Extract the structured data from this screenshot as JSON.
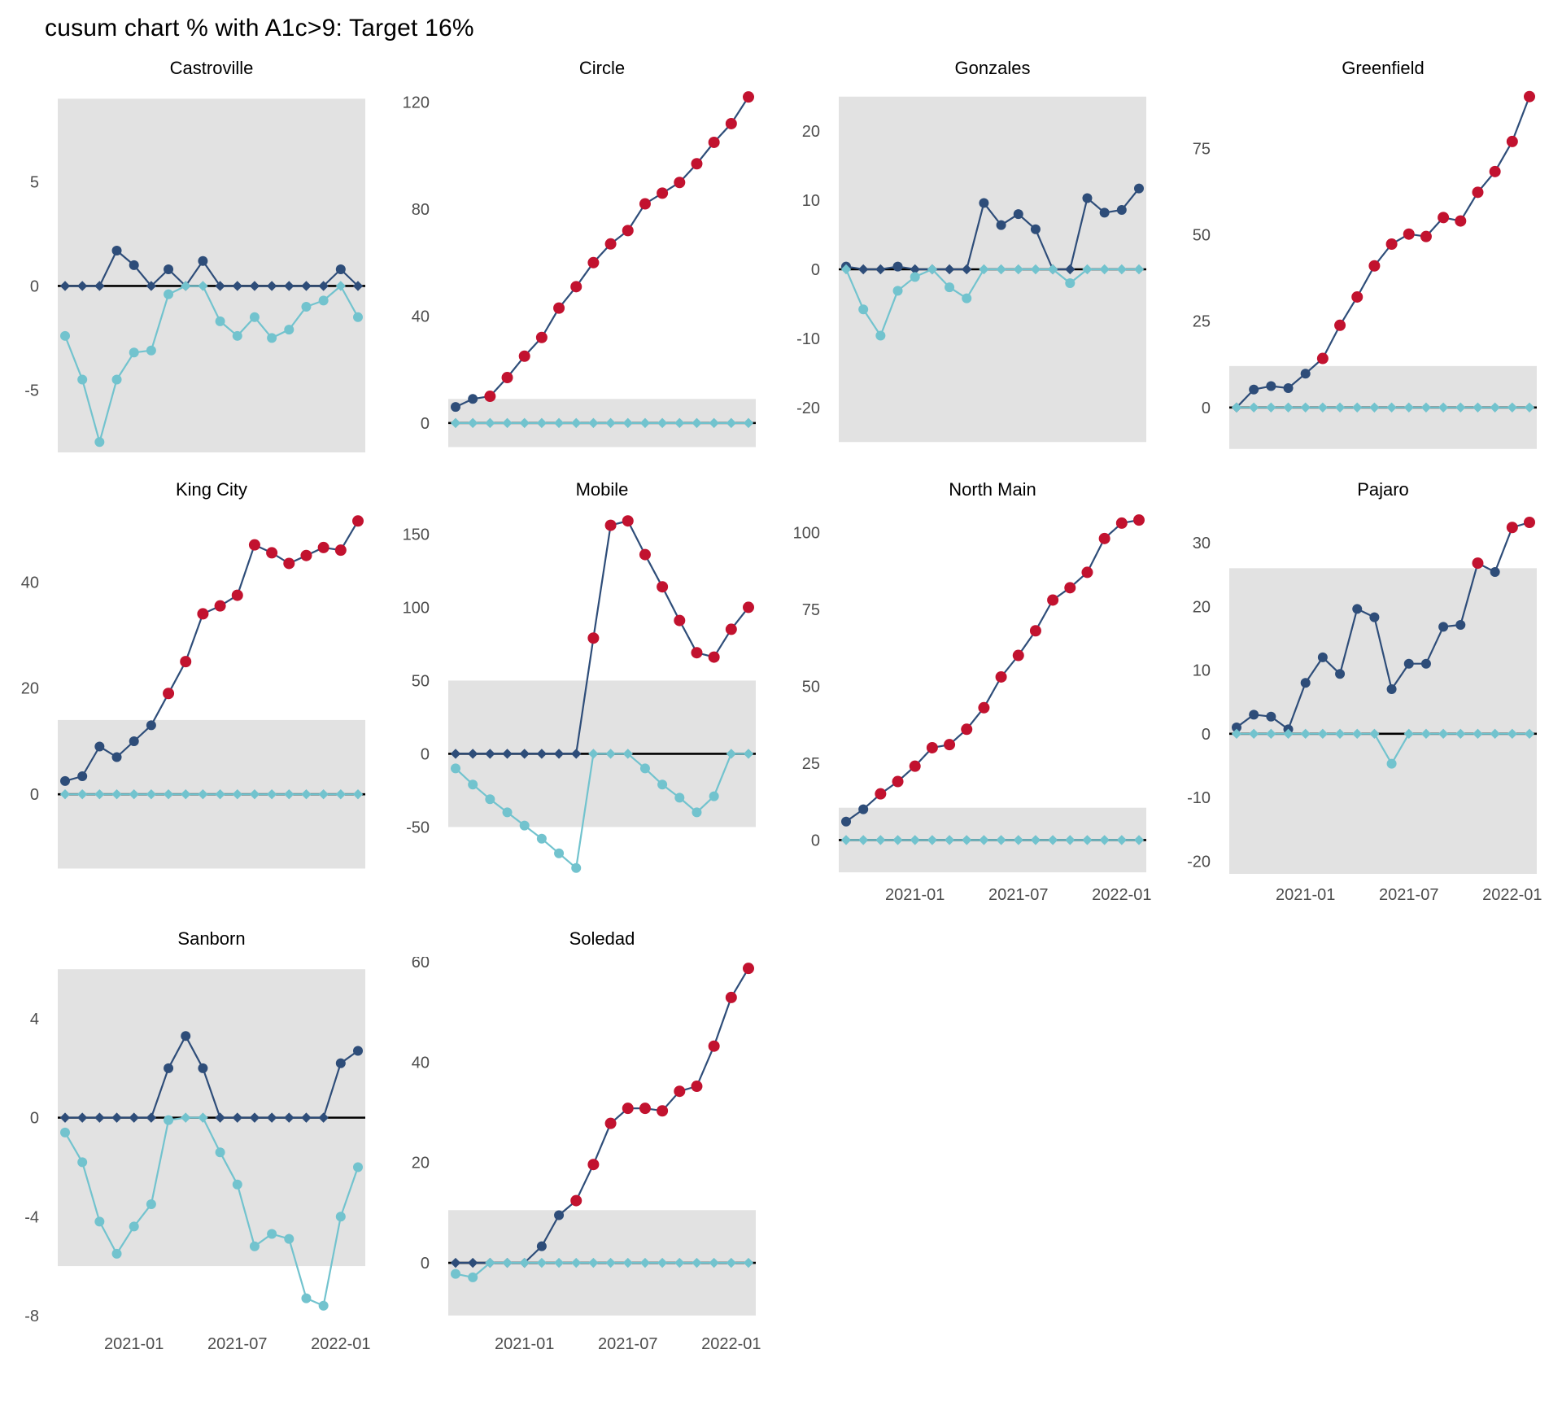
{
  "title": "cusum chart % with A1c>9: Target 16%",
  "colors": {
    "navy": "#2e4d79",
    "red": "#c2122f",
    "cyan": "#72c3ce",
    "band": "#e2e2e2",
    "axis_text": "#4d4d4d",
    "zero_line": "#000000",
    "background": "#ffffff"
  },
  "x_axis": {
    "tick_labels": [
      "2021-01",
      "2021-07",
      "2022-01"
    ],
    "tick_month_indices": [
      4,
      10,
      16
    ],
    "n_points": 18
  },
  "chart_data": {
    "type": "line",
    "title": "cusum chart % with A1c>9: Target 16%",
    "legend": "none",
    "grid": false,
    "series_names": [
      "cusum-upper",
      "cusum-lower"
    ],
    "panels": [
      {
        "title": "Castroville",
        "ylim": [
          -8.0,
          9.6
        ],
        "yticks": [
          -5,
          0,
          5
        ],
        "band_limit": 9,
        "upper": [
          0,
          0,
          0,
          1.7,
          1.0,
          0,
          0.8,
          0,
          1.2,
          0,
          0,
          0,
          0,
          0,
          0,
          0,
          0.8,
          0
        ],
        "upper_flags": [
          0,
          0,
          0,
          0,
          0,
          0,
          0,
          0,
          0,
          0,
          0,
          0,
          0,
          0,
          0,
          0,
          0,
          0
        ],
        "lower": [
          -2.4,
          -4.5,
          -7.5,
          -4.5,
          -3.2,
          -3.1,
          -0.4,
          0,
          0,
          -1.7,
          -2.4,
          -1.5,
          -2.5,
          -2.1,
          -1.0,
          -0.7,
          0,
          -1.5
        ],
        "show_x_axis": false
      },
      {
        "title": "Circle",
        "ylim": [
          -11,
          126
        ],
        "yticks": [
          0,
          40,
          80,
          120
        ],
        "band_limit": 9,
        "upper": [
          6,
          9,
          10,
          17,
          25,
          32,
          43,
          51,
          60,
          67,
          72,
          82,
          86,
          90,
          97,
          105,
          112,
          122
        ],
        "upper_flags": [
          0,
          0,
          1,
          1,
          1,
          1,
          1,
          1,
          1,
          1,
          1,
          1,
          1,
          1,
          1,
          1,
          1,
          1
        ],
        "lower": [
          0,
          0,
          0,
          0,
          0,
          0,
          0,
          0,
          0,
          0,
          0,
          0,
          0,
          0,
          0,
          0,
          0,
          0
        ],
        "show_x_axis": false
      },
      {
        "title": "Gonzales",
        "ylim": [
          -26.5,
          26.5
        ],
        "yticks": [
          -20,
          -10,
          0,
          10,
          20
        ],
        "band_limit": 25,
        "upper": [
          0.4,
          0,
          0,
          0.4,
          0,
          0,
          0,
          0,
          9.6,
          6.4,
          8,
          5.8,
          0,
          0,
          10.3,
          8.2,
          8.6,
          11.7
        ],
        "upper_flags": [
          0,
          0,
          0,
          0,
          0,
          0,
          0,
          0,
          0,
          0,
          0,
          0,
          0,
          0,
          0,
          0,
          0,
          0
        ],
        "lower": [
          0,
          -5.8,
          -9.6,
          -3.1,
          -1.1,
          0,
          -2.6,
          -4.2,
          0,
          0,
          0,
          0,
          0,
          -2,
          0,
          0,
          0,
          0
        ],
        "show_x_axis": false
      },
      {
        "title": "Greenfield",
        "ylim": [
          -13,
          93
        ],
        "yticks": [
          0,
          25,
          50,
          75
        ],
        "band_limit": 12,
        "upper": [
          0,
          5.2,
          6.2,
          5.6,
          9.8,
          14.2,
          23.8,
          32,
          41,
          47.3,
          50.2,
          49.5,
          55,
          54,
          62.3,
          68.3,
          77,
          90
        ],
        "upper_flags": [
          0,
          0,
          0,
          0,
          0,
          1,
          1,
          1,
          1,
          1,
          1,
          1,
          1,
          1,
          1,
          1,
          1,
          1
        ],
        "lower": [
          0,
          0,
          0,
          0,
          0,
          0,
          0,
          0,
          0,
          0,
          0,
          0,
          0,
          0,
          0,
          0,
          0,
          0
        ],
        "show_x_axis": false
      },
      {
        "title": "King City",
        "ylim": [
          -15,
          54
        ],
        "yticks": [
          0,
          20,
          40
        ],
        "band_limit": 14,
        "upper": [
          2.5,
          3.4,
          9,
          7,
          10,
          13,
          19,
          25,
          34,
          35.5,
          37.5,
          47,
          45.5,
          43.5,
          45,
          46.5,
          46,
          51.5
        ],
        "upper_flags": [
          0,
          0,
          0,
          0,
          0,
          0,
          1,
          1,
          1,
          1,
          1,
          1,
          1,
          1,
          1,
          1,
          1,
          1
        ],
        "lower": [
          0,
          0,
          0,
          0,
          0,
          0,
          0,
          0,
          0,
          0,
          0,
          0,
          0,
          0,
          0,
          0,
          0,
          0
        ],
        "show_x_axis": false
      },
      {
        "title": "Mobile",
        "ylim": [
          -82,
          168
        ],
        "yticks": [
          -50,
          0,
          50,
          100,
          150
        ],
        "band_limit": 50,
        "upper": [
          0,
          0,
          0,
          0,
          0,
          0,
          0,
          0,
          79,
          156,
          159,
          136,
          114,
          91,
          69,
          66,
          85,
          100
        ],
        "upper_flags": [
          0,
          0,
          0,
          0,
          0,
          0,
          0,
          0,
          1,
          1,
          1,
          1,
          1,
          1,
          1,
          1,
          1,
          1
        ],
        "lower": [
          -10,
          -21,
          -31,
          -40,
          -49,
          -58,
          -68,
          -78,
          0,
          0,
          0,
          -10,
          -21,
          -30,
          -40,
          -29,
          0,
          0
        ],
        "show_x_axis": false
      },
      {
        "title": "North Main",
        "ylim": [
          -11,
          108
        ],
        "yticks": [
          0,
          25,
          50,
          75,
          100
        ],
        "band_limit": 10.5,
        "upper": [
          6,
          10,
          15,
          19,
          24,
          30,
          31,
          36,
          43,
          53,
          60,
          68,
          78,
          82,
          87,
          98,
          103,
          104
        ],
        "upper_flags": [
          0,
          0,
          1,
          1,
          1,
          1,
          1,
          1,
          1,
          1,
          1,
          1,
          1,
          1,
          1,
          1,
          1,
          1
        ],
        "lower": [
          0,
          0,
          0,
          0,
          0,
          0,
          0,
          0,
          0,
          0,
          0,
          0,
          0,
          0,
          0,
          0,
          0,
          0
        ],
        "show_x_axis": true
      },
      {
        "title": "Pajaro",
        "ylim": [
          -22,
          35.5
        ],
        "yticks": [
          -20,
          -10,
          0,
          10,
          20,
          30
        ],
        "band_limit": 26,
        "upper": [
          1,
          3,
          2.7,
          0.7,
          8,
          12,
          9.4,
          19.6,
          18.3,
          7,
          11,
          11,
          16.8,
          17.1,
          26.8,
          25.4,
          32.4,
          33.2
        ],
        "upper_flags": [
          0,
          0,
          0,
          0,
          0,
          0,
          0,
          0,
          0,
          0,
          0,
          0,
          0,
          0,
          1,
          0,
          1,
          1
        ],
        "lower": [
          0,
          0,
          0,
          0,
          0,
          0,
          0,
          0,
          0,
          -4.7,
          0,
          0,
          0,
          0,
          0,
          0,
          0,
          0
        ],
        "show_x_axis": true
      },
      {
        "title": "Sanborn",
        "ylim": [
          -8.3,
          6.5
        ],
        "yticks": [
          -8,
          -4,
          0,
          4
        ],
        "band_limit": 6,
        "upper": [
          0,
          0,
          0,
          0,
          0,
          0,
          2,
          3.3,
          2,
          0,
          0,
          0,
          0,
          0,
          0,
          0,
          2.2,
          2.7
        ],
        "upper_flags": [
          0,
          0,
          0,
          0,
          0,
          0,
          0,
          0,
          0,
          0,
          0,
          0,
          0,
          0,
          0,
          0,
          0,
          0
        ],
        "lower": [
          -0.6,
          -1.8,
          -4.2,
          -5.5,
          -4.4,
          -3.5,
          -0.1,
          0,
          0,
          -1.4,
          -2.7,
          -5.2,
          -4.7,
          -4.9,
          -7.3,
          -7.6,
          -4,
          -2
        ],
        "show_x_axis": true
      },
      {
        "title": "Soledad",
        "ylim": [
          -12,
          61
        ],
        "yticks": [
          0,
          20,
          40,
          60
        ],
        "band_limit": 10.5,
        "upper": [
          0,
          0,
          0,
          0,
          0,
          3.3,
          9.5,
          12.4,
          19.6,
          27.8,
          30.8,
          30.8,
          30.3,
          34.2,
          35.2,
          43.2,
          52.9,
          58.7
        ],
        "upper_flags": [
          0,
          0,
          0,
          0,
          0,
          0,
          0,
          1,
          1,
          1,
          1,
          1,
          1,
          1,
          1,
          1,
          1,
          1
        ],
        "lower": [
          -2.2,
          -2.9,
          0,
          0,
          0,
          0,
          0,
          0,
          0,
          0,
          0,
          0,
          0,
          0,
          0,
          0,
          0,
          0
        ],
        "show_x_axis": true
      }
    ]
  }
}
